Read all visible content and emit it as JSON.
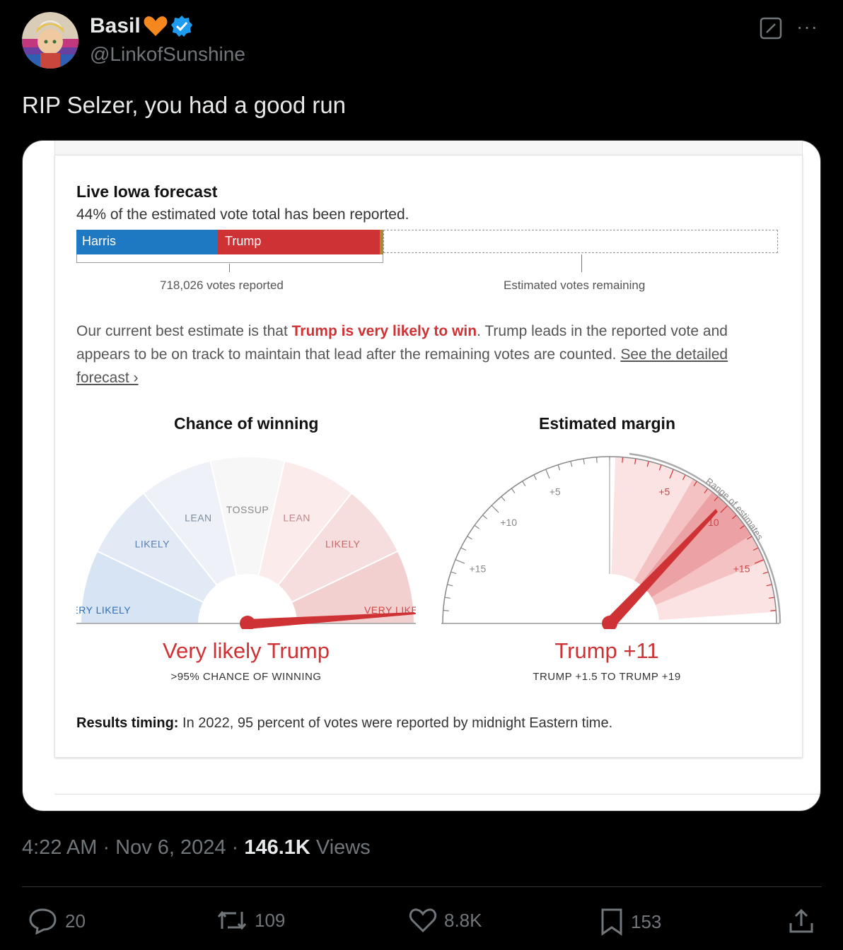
{
  "tweet": {
    "display_name": "Basil",
    "handle": "@LinkofSunshine",
    "text": "RIP Selzer, you had a good run",
    "timestamp": "4:22 AM · Nov 6, 2024 ·",
    "views_count": "146.1K",
    "views_label": "Views",
    "icons": [
      "heart-emoji-icon",
      "verified-badge-icon",
      "grok-icon",
      "more-icon"
    ]
  },
  "forecast": {
    "title": "Live Iowa forecast",
    "subtitle": "44% of the estimated vote total has been reported.",
    "bar": {
      "harris_label": "Harris",
      "trump_label": "Trump",
      "harris_color": "#1e78c2",
      "trump_color": "#cf3234",
      "reported_label": "718,026 votes reported",
      "remaining_label": "Estimated votes remaining"
    },
    "paragraph": {
      "p1": "Our current best estimate is that ",
      "highlight": "Trump is very likely to win",
      "p2": ". Trump leads in the reported vote and appears to be on track to maintain that lead after the remaining votes are counted. ",
      "link": "See the detailed forecast ›"
    },
    "chance_gauge": {
      "title": "Chance of winning",
      "segments": [
        "VERY LIKELY",
        "LIKELY",
        "LEAN",
        "TOSSUP",
        "LEAN",
        "LIKELY",
        "VERY LIKELY"
      ],
      "verdict": "Very likely Trump",
      "detail": ">95% CHANCE OF WINNING"
    },
    "margin_gauge": {
      "title": "Estimated margin",
      "ticks_left": [
        "+5",
        "+10",
        "+15"
      ],
      "ticks_right": [
        "+5",
        "+10",
        "+15"
      ],
      "range_label": "Range of estimates",
      "verdict": "Trump +11",
      "detail": "TRUMP +1.5 TO TRUMP +19"
    },
    "timing_label": "Results timing:",
    "timing_text": " In 2022, 95 percent of votes were reported by midnight Eastern time."
  },
  "actions": {
    "replies": "20",
    "reposts": "109",
    "likes": "8.8K",
    "bookmarks": "153"
  }
}
